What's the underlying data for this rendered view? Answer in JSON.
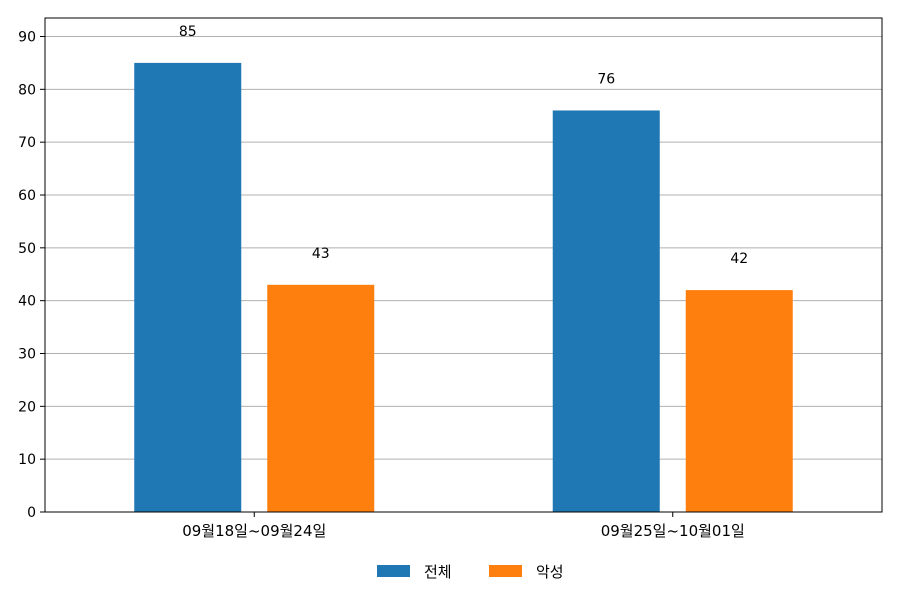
{
  "chart_data": {
    "type": "bar",
    "categories": [
      "09월18일~09월24일",
      "09월25일~10월01일"
    ],
    "series": [
      {
        "name": "전체",
        "values": [
          85,
          76
        ],
        "color": "#1f77b4"
      },
      {
        "name": "악성",
        "values": [
          43,
          42
        ],
        "color": "#ff7f0e"
      }
    ],
    "title": "",
    "xlabel": "",
    "ylabel": "",
    "ylim": [
      0,
      93.5
    ],
    "yticks": [
      0,
      10,
      20,
      30,
      40,
      50,
      60,
      70,
      80,
      90
    ],
    "grid": "horizontal",
    "legend_position": "bottom-center",
    "show_data_labels": true
  }
}
